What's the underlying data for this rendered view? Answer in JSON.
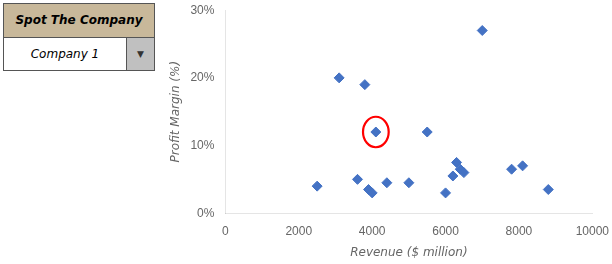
{
  "chart_data": {
    "type": "scatter",
    "x": [
      2500,
      3100,
      3600,
      3800,
      3900,
      4000,
      4100,
      4400,
      5000,
      5500,
      6000,
      6200,
      6300,
      6400,
      6500,
      7000,
      7800,
      8100,
      8800
    ],
    "values": [
      4,
      20,
      5,
      19,
      3.5,
      3,
      12,
      4.5,
      4.5,
      12,
      3,
      5.5,
      7.5,
      6.5,
      6,
      27,
      6.5,
      7,
      3.5
    ],
    "color": "#4472C4",
    "marker": "diamond",
    "xlabel": "Revenue ($ million)",
    "ylabel": "Profit Margin (%)",
    "xlim": [
      0,
      10000
    ],
    "ylim": [
      0,
      30
    ],
    "xticks": [
      0,
      2000,
      4000,
      6000,
      8000,
      10000
    ],
    "yticks": [
      {
        "value": 0,
        "label": "0%"
      },
      {
        "value": 10,
        "label": "10%"
      },
      {
        "value": 20,
        "label": "20%"
      },
      {
        "value": 30,
        "label": "30%"
      }
    ],
    "grid": false,
    "highlight": {
      "x": 4100,
      "y": 12,
      "width": 700,
      "height": 4.5,
      "color": "red"
    },
    "panel": {
      "title": "Spot The Company",
      "label": "Company 1",
      "button": "▼",
      "title_color": "#c8b89a",
      "label_color": "#ffffff",
      "button_color": "#c0c0c0"
    }
  }
}
